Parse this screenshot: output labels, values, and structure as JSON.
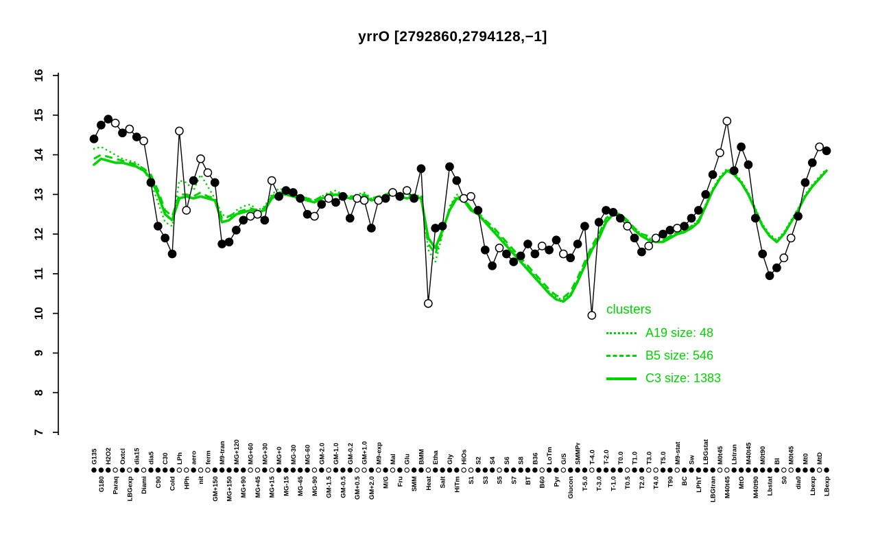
{
  "colors": {
    "cluster_green": "#00d400",
    "series_black": "#000000",
    "background": "#ffffff"
  },
  "chart_data": {
    "type": "line",
    "title": "yrrO [2792860,2794128,−1]",
    "xlabel": "",
    "ylabel": "",
    "ylim": [
      7,
      16
    ],
    "yticks": [
      7,
      8,
      9,
      10,
      11,
      12,
      13,
      14,
      15,
      16
    ],
    "grid": false,
    "x_label_layout": "perpendicular labels, alternating rows, first label in top row",
    "legend_position": "right-center",
    "categories": [
      "G135",
      "G180",
      "H2O2",
      "Paraq",
      "Oxtcl",
      "LBGexp",
      "dia15",
      "Diami",
      "dia5",
      "C90",
      "C30",
      "Cold",
      "LPh",
      "HPh",
      "aero",
      "nit",
      "ferm",
      "GM+150",
      "M9-tran",
      "MG+150",
      "MG+120",
      "MG+90",
      "MG+60",
      "MG+45",
      "MG+30",
      "MG+15",
      "MG+0",
      "MG-15",
      "MG-30",
      "MG-45",
      "MG-60",
      "MG-90",
      "GM-2.0",
      "GM-1.5",
      "GM-1.0",
      "GM-0.5",
      "GM-0.2",
      "GM+0.5",
      "GM+1.0",
      "GM+2.0",
      "M9-exp",
      "M/G",
      "Mal",
      "Fru",
      "Glu",
      "SMM",
      "BMM",
      "Heat",
      "Etha",
      "Salt",
      "Gly",
      "HiTm",
      "HiOs",
      "S1",
      "S2",
      "S3",
      "S4",
      "S5",
      "S6",
      "S7",
      "S8",
      "BT",
      "B36",
      "B60",
      "LoTm",
      "Pyr",
      "G/S",
      "Glucon",
      "SMMPr",
      "T-5.0",
      "T-4.0",
      "T-3.0",
      "T-2.0",
      "T-1.0",
      "T0.0",
      "T0.5",
      "T1.0",
      "T2.0",
      "T3.0",
      "T4.0",
      "T5.0",
      "T90",
      "M9-stat",
      "BC",
      "Sw",
      "LPhT",
      "LBGstat",
      "LBGtran",
      "M0t45",
      "M40t45",
      "Lbtran",
      "MtO",
      "M40t45",
      "M40t90",
      "M0t90",
      "Lbstat",
      "BI",
      "S0",
      "M0t45",
      "dia0",
      "Mt0",
      "Lbexp",
      "MtD",
      "LBexp"
    ],
    "series": [
      {
        "name": "yrrO",
        "role": "gene",
        "color": "#000000",
        "marker": "circle",
        "values": [
          14.4,
          14.75,
          14.9,
          14.8,
          14.55,
          14.65,
          14.45,
          14.35,
          13.3,
          12.2,
          11.9,
          11.5,
          14.6,
          12.6,
          13.35,
          13.9,
          13.55,
          13.3,
          11.75,
          11.8,
          12.1,
          12.35,
          12.45,
          12.5,
          12.35,
          13.35,
          12.95,
          13.1,
          13.05,
          12.9,
          12.5,
          12.45,
          12.75,
          12.9,
          12.8,
          12.95,
          12.4,
          12.9,
          12.85,
          12.15,
          12.85,
          12.9,
          13.05,
          12.95,
          13.1,
          12.9,
          13.65,
          10.25,
          12.15,
          12.2,
          13.7,
          13.35,
          12.9,
          12.95,
          12.6,
          11.6,
          11.2,
          11.65,
          11.5,
          11.3,
          11.45,
          11.75,
          11.5,
          11.7,
          11.6,
          11.85,
          11.5,
          11.4,
          11.75,
          12.2,
          9.95,
          12.3,
          12.6,
          12.55,
          12.4,
          12.2,
          11.9,
          11.55,
          11.7,
          11.9,
          12.0,
          12.1,
          12.15,
          12.2,
          12.4,
          12.6,
          13.0,
          13.5,
          14.05,
          14.85,
          13.6,
          14.2,
          13.75,
          12.4,
          11.5,
          10.95,
          11.15,
          11.4,
          11.9,
          12.45,
          13.3,
          13.8,
          14.2,
          14.1
        ],
        "marker_filled": [
          1,
          1,
          1,
          0,
          1,
          0,
          1,
          0,
          1,
          1,
          1,
          1,
          0,
          0,
          1,
          0,
          0,
          1,
          1,
          1,
          1,
          1,
          0,
          0,
          1,
          0,
          1,
          1,
          1,
          1,
          1,
          0,
          1,
          0,
          1,
          1,
          1,
          0,
          0,
          1,
          0,
          1,
          0,
          1,
          0,
          1,
          1,
          0,
          1,
          1,
          1,
          1,
          0,
          0,
          1,
          1,
          1,
          0,
          1,
          1,
          1,
          1,
          1,
          0,
          1,
          1,
          0,
          1,
          1,
          1,
          0,
          1,
          1,
          1,
          1,
          0,
          1,
          1,
          0,
          0,
          1,
          1,
          0,
          1,
          1,
          1,
          1,
          1,
          0,
          0,
          1,
          1,
          1,
          1,
          1,
          1,
          1,
          0,
          0,
          1,
          1,
          1,
          0,
          1
        ]
      },
      {
        "name": "A19",
        "role": "cluster",
        "style": "dotted",
        "color": "#00d400",
        "values": [
          14.15,
          14.2,
          14.1,
          14.0,
          13.9,
          13.85,
          13.8,
          13.6,
          13.3,
          12.8,
          12.3,
          12.2,
          13.35,
          13.3,
          13.1,
          13.5,
          13.2,
          12.9,
          12.5,
          12.4,
          12.6,
          12.7,
          12.75,
          12.6,
          12.7,
          13.0,
          13.15,
          13.1,
          13.0,
          12.95,
          12.9,
          12.85,
          12.95,
          13.05,
          13.1,
          13.0,
          12.95,
          13.0,
          13.05,
          12.9,
          12.95,
          13.0,
          13.1,
          13.05,
          13.0,
          13.0,
          12.95,
          11.6,
          11.3,
          12.0,
          12.7,
          13.0,
          12.9,
          12.65,
          12.5,
          12.35,
          12.15,
          11.95,
          11.75,
          11.55,
          11.35,
          11.15,
          10.95,
          10.75,
          10.55,
          10.4,
          10.35,
          10.5,
          10.85,
          11.25,
          11.65,
          11.95,
          12.35,
          12.55,
          12.5,
          12.35,
          12.15,
          12.0,
          11.9,
          11.85,
          11.85,
          11.95,
          12.05,
          12.1,
          12.2,
          12.35,
          12.75,
          13.15,
          13.45,
          13.65,
          13.55,
          13.35,
          13.05,
          12.65,
          12.25,
          12.0,
          11.85,
          12.05,
          12.35,
          12.65,
          13.0,
          13.25,
          13.45,
          13.65
        ]
      },
      {
        "name": "B5",
        "role": "cluster",
        "style": "dashed",
        "color": "#00d400",
        "values": [
          13.9,
          14.0,
          13.95,
          13.9,
          13.85,
          13.8,
          13.75,
          13.65,
          13.5,
          13.1,
          12.6,
          12.45,
          13.0,
          13.0,
          12.95,
          13.05,
          12.95,
          12.9,
          12.4,
          12.45,
          12.55,
          12.6,
          12.65,
          12.6,
          12.65,
          12.95,
          13.05,
          13.05,
          13.0,
          12.95,
          12.9,
          12.85,
          12.95,
          13.0,
          13.05,
          13.0,
          12.95,
          12.95,
          13.0,
          12.9,
          12.95,
          13.0,
          13.05,
          13.0,
          12.95,
          13.0,
          12.95,
          11.75,
          11.5,
          12.05,
          12.65,
          12.95,
          12.9,
          12.65,
          12.55,
          12.35,
          12.2,
          12.0,
          11.8,
          11.6,
          11.4,
          11.2,
          11.0,
          10.8,
          10.6,
          10.45,
          10.4,
          10.55,
          10.9,
          11.3,
          11.7,
          12.0,
          12.4,
          12.55,
          12.5,
          12.35,
          12.15,
          12.0,
          11.95,
          11.9,
          11.85,
          11.95,
          12.05,
          12.1,
          12.2,
          12.35,
          12.7,
          13.1,
          13.4,
          13.6,
          13.5,
          13.3,
          13.0,
          12.6,
          12.2,
          11.95,
          11.8,
          12.0,
          12.3,
          12.6,
          12.95,
          13.2,
          13.4,
          13.6
        ]
      },
      {
        "name": "C3",
        "role": "cluster",
        "style": "solid",
        "color": "#00d400",
        "values": [
          13.75,
          13.9,
          13.85,
          13.8,
          13.8,
          13.75,
          13.7,
          13.6,
          13.4,
          13.0,
          12.5,
          12.35,
          12.9,
          12.95,
          12.9,
          12.95,
          12.9,
          12.85,
          12.3,
          12.35,
          12.5,
          12.55,
          12.6,
          12.55,
          12.6,
          12.9,
          13.0,
          13.0,
          12.95,
          12.9,
          12.85,
          12.8,
          12.9,
          12.95,
          13.0,
          12.95,
          12.9,
          12.9,
          12.95,
          12.85,
          12.9,
          12.95,
          13.0,
          12.95,
          12.9,
          12.95,
          12.9,
          11.9,
          11.65,
          12.1,
          12.6,
          12.9,
          12.85,
          12.6,
          12.5,
          12.3,
          12.1,
          11.9,
          11.7,
          11.5,
          11.3,
          11.1,
          10.9,
          10.7,
          10.5,
          10.35,
          10.3,
          10.45,
          10.8,
          11.2,
          11.6,
          11.9,
          12.3,
          12.5,
          12.45,
          12.3,
          12.1,
          11.95,
          11.85,
          11.8,
          11.8,
          11.9,
          12.0,
          12.05,
          12.15,
          12.3,
          12.7,
          13.1,
          13.4,
          13.6,
          13.5,
          13.3,
          13.0,
          12.6,
          12.2,
          11.95,
          11.8,
          12.0,
          12.3,
          12.6,
          12.95,
          13.2,
          13.4,
          13.6
        ]
      }
    ],
    "legend": {
      "title": "clusters",
      "items": [
        {
          "cluster": "A19",
          "size": 48,
          "style": "dotted",
          "label": "A19 size: 48"
        },
        {
          "cluster": "B5",
          "size": 546,
          "style": "dashed",
          "label": "B5 size: 546"
        },
        {
          "cluster": "C3",
          "size": 1383,
          "style": "solid",
          "label": "C3 size: 1383"
        }
      ]
    }
  }
}
